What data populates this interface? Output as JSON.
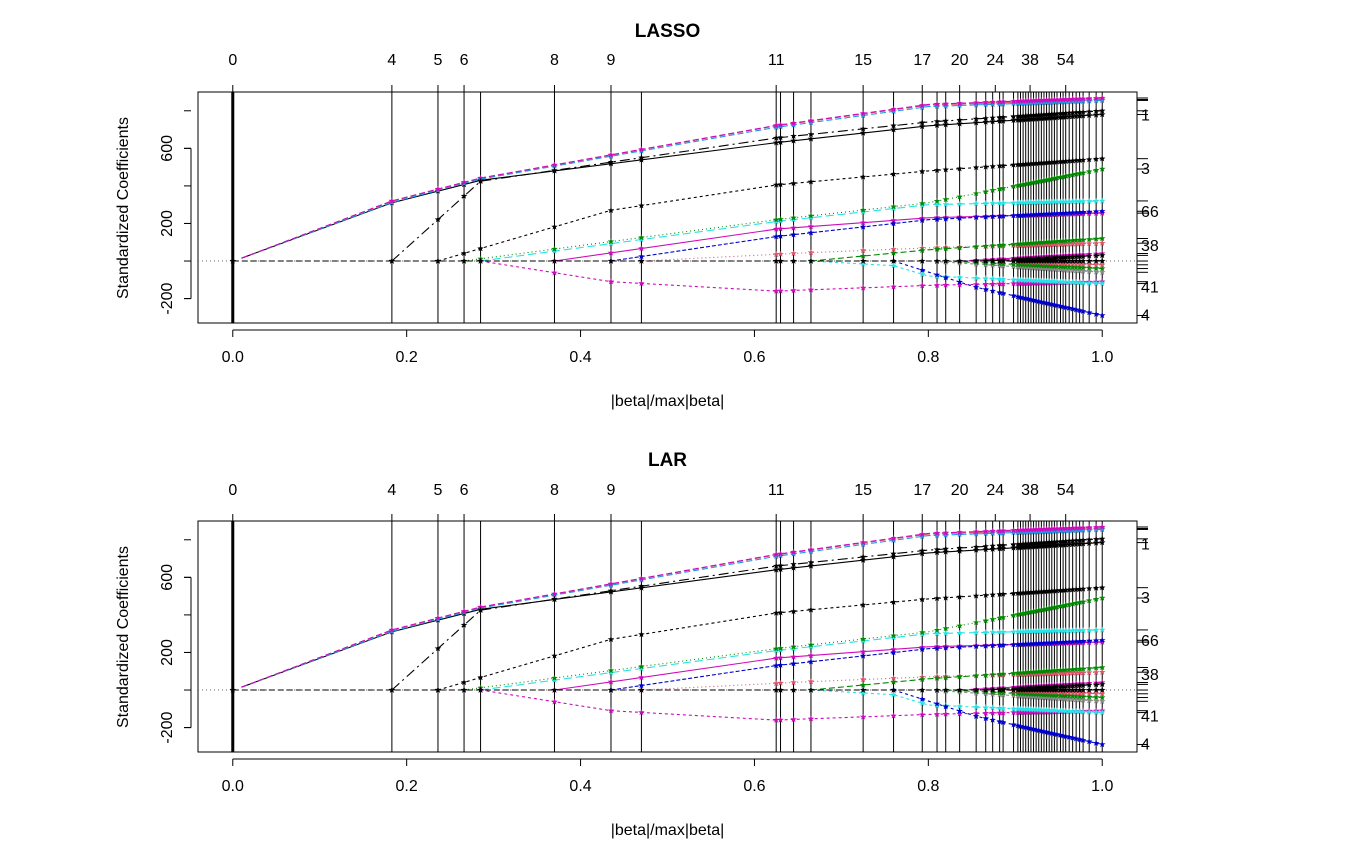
{
  "chart_data": [
    {
      "type": "line",
      "title": "LASSO",
      "xlabel": "|beta|/max|beta|",
      "ylabel": "Standardized Coefficients",
      "xlim": [
        0,
        1
      ],
      "ylim": [
        -330,
        900
      ],
      "x_ticks": [
        "0.0",
        "0.2",
        "0.4",
        "0.6",
        "0.8",
        "1.0"
      ],
      "x_tick_values": [
        0,
        0.2,
        0.4,
        0.6,
        0.8,
        1.0
      ],
      "y_ticks": [
        "-200",
        "200",
        "600"
      ],
      "y_tick_values": [
        -200,
        200,
        600
      ],
      "top_axis_labels": [
        "0",
        "4",
        "5",
        "6",
        "8",
        "9",
        "11",
        "15",
        "17",
        "20",
        "24",
        "38",
        "54"
      ],
      "top_axis_positions": [
        0.0,
        0.183,
        0.236,
        0.266,
        0.37,
        0.435,
        0.625,
        0.725,
        0.793,
        0.836,
        0.877,
        0.917,
        0.958
      ],
      "step_positions": [
        0.0,
        0.183,
        0.236,
        0.266,
        0.285,
        0.37,
        0.435,
        0.47,
        0.625,
        0.63,
        0.645,
        0.665,
        0.725,
        0.76,
        0.793,
        0.81,
        0.82,
        0.836,
        0.855,
        0.866,
        0.874,
        0.882,
        0.886,
        0.898,
        0.903,
        0.906,
        0.909,
        0.912,
        0.915,
        0.918,
        0.921,
        0.924,
        0.927,
        0.93,
        0.933,
        0.936,
        0.939,
        0.942,
        0.945,
        0.948,
        0.952,
        0.955,
        0.958,
        0.962,
        0.966,
        0.97,
        0.974,
        0.978,
        0.985,
        0.993,
        1.0
      ],
      "right_axis_labels": [
        "1",
        "3",
        "66",
        "38",
        "41",
        "4"
      ],
      "right_axis_values": [
        775,
        490,
        260,
        80,
        -140,
        -290
      ],
      "series": [
        {
          "color": "#000000",
          "dash": "",
          "x": [
            0.01,
            0.183,
            0.285,
            0.625,
            0.8,
            1.0
          ],
          "values": [
            15,
            310,
            430,
            630,
            720,
            780
          ]
        },
        {
          "color": "#DF536B",
          "dash": "6,3",
          "x": [
            0.01,
            0.183,
            0.285,
            0.625,
            0.8,
            1.0
          ],
          "values": [
            15,
            318,
            440,
            720,
            830,
            860
          ]
        },
        {
          "color": "#2297E6",
          "dash": "6,3",
          "x": [
            0.01,
            0.183,
            0.285,
            0.625,
            0.8,
            1.0
          ],
          "values": [
            15,
            312,
            436,
            712,
            822,
            855
          ]
        },
        {
          "color": "#CD0BBC",
          "dash": "6,3",
          "x": [
            0.01,
            0.183,
            0.285,
            0.625,
            0.8,
            1.0
          ],
          "values": [
            15,
            320,
            442,
            722,
            834,
            868
          ]
        },
        {
          "color": "#000000",
          "dash": "10,4,2,4",
          "x": [
            0.183,
            0.285,
            0.625,
            0.8,
            1.0
          ],
          "values": [
            0,
            425,
            655,
            740,
            800
          ]
        },
        {
          "color": "#000000",
          "dash": "3,3",
          "x": [
            0.236,
            0.435,
            0.625,
            0.8,
            1.0
          ],
          "values": [
            0,
            270,
            405,
            480,
            545
          ]
        },
        {
          "color": "#28E2E5",
          "dash": "8,4",
          "x": [
            0.285,
            0.625,
            0.8,
            1.0
          ],
          "values": [
            0,
            210,
            300,
            320
          ]
        },
        {
          "color": "#008800",
          "dash": "1,3",
          "x": [
            0.266,
            0.625,
            0.8,
            1.0
          ],
          "values": [
            0,
            220,
            310,
            490
          ]
        },
        {
          "color": "#CD0BBC",
          "dash": "",
          "x": [
            0.37,
            0.625,
            0.8,
            1.0
          ],
          "values": [
            0,
            170,
            230,
            255
          ]
        },
        {
          "color": "#0000CC",
          "dash": "4,2",
          "x": [
            0.435,
            0.625,
            0.8,
            1.0
          ],
          "values": [
            0,
            130,
            220,
            265
          ]
        },
        {
          "color": "#CD0BBC",
          "dash": "3,3",
          "x": [
            0.285,
            0.435,
            0.625,
            0.8,
            1.0
          ],
          "values": [
            0,
            -110,
            -160,
            -130,
            -110
          ]
        },
        {
          "color": "#DF536B",
          "dash": "1,3",
          "x": [
            0.47,
            0.665,
            0.8,
            1.0
          ],
          "values": [
            0,
            45,
            70,
            95
          ]
        },
        {
          "color": "#008800",
          "dash": "6,3",
          "x": [
            0.665,
            0.8,
            1.0
          ],
          "values": [
            0,
            60,
            120
          ]
        },
        {
          "color": "#28E2E5",
          "dash": "3,3",
          "x": [
            0.665,
            0.76,
            0.8,
            1.0
          ],
          "values": [
            0,
            -25,
            -80,
            -120
          ]
        },
        {
          "color": "#0000CC",
          "dash": "3,3",
          "x": [
            0.76,
            0.855,
            1.0
          ],
          "values": [
            0,
            -140,
            -290
          ]
        },
        {
          "color": "#888888",
          "dash": "3,3",
          "x": [
            0.8,
            1.0
          ],
          "values": [
            0,
            -60
          ]
        },
        {
          "color": "#008800",
          "dash": "6,3",
          "x": [
            0.82,
            1.0
          ],
          "values": [
            0,
            -40
          ]
        },
        {
          "color": "#CD0BBC",
          "dash": "6,3",
          "x": [
            0.836,
            1.0
          ],
          "values": [
            0,
            40
          ]
        },
        {
          "color": "#000000",
          "dash": "6,3",
          "x": [
            0.866,
            1.0
          ],
          "values": [
            0,
            30
          ]
        },
        {
          "color": "#DF536B",
          "dash": "6,3",
          "x": [
            0.882,
            1.0
          ],
          "values": [
            0,
            -20
          ]
        },
        {
          "color": "#000000",
          "dash": "6,3",
          "x": [
            0.0,
            1.0
          ],
          "values": [
            0,
            0
          ]
        }
      ]
    },
    {
      "type": "line",
      "title": "LAR",
      "xlabel": "|beta|/max|beta|",
      "ylabel": "Standardized Coefficients",
      "xlim": [
        0,
        1
      ],
      "ylim": [
        -330,
        900
      ],
      "x_ticks": [
        "0.0",
        "0.2",
        "0.4",
        "0.6",
        "0.8",
        "1.0"
      ],
      "x_tick_values": [
        0,
        0.2,
        0.4,
        0.6,
        0.8,
        1.0
      ],
      "y_ticks": [
        "-200",
        "200",
        "600"
      ],
      "y_tick_values": [
        -200,
        200,
        600
      ],
      "top_axis_labels": [
        "0",
        "4",
        "5",
        "6",
        "8",
        "9",
        "11",
        "15",
        "17",
        "20",
        "24",
        "38",
        "54"
      ],
      "top_axis_positions": [
        0.0,
        0.183,
        0.236,
        0.266,
        0.37,
        0.435,
        0.625,
        0.725,
        0.793,
        0.836,
        0.877,
        0.917,
        0.958
      ],
      "step_positions": [
        0.0,
        0.183,
        0.236,
        0.266,
        0.285,
        0.37,
        0.435,
        0.47,
        0.625,
        0.63,
        0.645,
        0.665,
        0.725,
        0.76,
        0.793,
        0.81,
        0.82,
        0.836,
        0.855,
        0.866,
        0.874,
        0.882,
        0.886,
        0.898,
        0.903,
        0.906,
        0.909,
        0.912,
        0.915,
        0.918,
        0.921,
        0.924,
        0.927,
        0.93,
        0.933,
        0.936,
        0.939,
        0.942,
        0.945,
        0.948,
        0.952,
        0.955,
        0.958,
        0.962,
        0.966,
        0.97,
        0.974,
        0.978,
        0.985,
        0.993,
        1.0
      ],
      "right_axis_labels": [
        "1",
        "3",
        "66",
        "38",
        "41",
        "4"
      ],
      "right_axis_values": [
        775,
        490,
        260,
        80,
        -140,
        -290
      ],
      "series": [
        {
          "color": "#000000",
          "dash": "",
          "x": [
            0.01,
            0.183,
            0.285,
            0.625,
            0.8,
            1.0
          ],
          "values": [
            15,
            310,
            430,
            640,
            730,
            785
          ]
        },
        {
          "color": "#DF536B",
          "dash": "6,3",
          "x": [
            0.01,
            0.183,
            0.285,
            0.625,
            0.8,
            1.0
          ],
          "values": [
            15,
            318,
            440,
            720,
            830,
            860
          ]
        },
        {
          "color": "#2297E6",
          "dash": "6,3",
          "x": [
            0.01,
            0.183,
            0.285,
            0.625,
            0.8,
            1.0
          ],
          "values": [
            15,
            312,
            436,
            712,
            822,
            855
          ]
        },
        {
          "color": "#CD0BBC",
          "dash": "6,3",
          "x": [
            0.01,
            0.183,
            0.285,
            0.625,
            0.8,
            1.0
          ],
          "values": [
            15,
            320,
            442,
            722,
            834,
            868
          ]
        },
        {
          "color": "#000000",
          "dash": "10,4,2,4",
          "x": [
            0.183,
            0.285,
            0.625,
            0.8,
            1.0
          ],
          "values": [
            0,
            425,
            660,
            745,
            805
          ]
        },
        {
          "color": "#000000",
          "dash": "3,3",
          "x": [
            0.236,
            0.435,
            0.625,
            0.8,
            1.0
          ],
          "values": [
            0,
            270,
            410,
            485,
            545
          ]
        },
        {
          "color": "#28E2E5",
          "dash": "8,4",
          "x": [
            0.285,
            0.625,
            0.8,
            1.0
          ],
          "values": [
            0,
            210,
            300,
            320
          ]
        },
        {
          "color": "#008800",
          "dash": "1,3",
          "x": [
            0.266,
            0.625,
            0.8,
            1.0
          ],
          "values": [
            0,
            220,
            310,
            490
          ]
        },
        {
          "color": "#CD0BBC",
          "dash": "",
          "x": [
            0.37,
            0.625,
            0.8,
            1.0
          ],
          "values": [
            0,
            170,
            230,
            255
          ]
        },
        {
          "color": "#0000CC",
          "dash": "4,2",
          "x": [
            0.435,
            0.625,
            0.8,
            1.0
          ],
          "values": [
            0,
            130,
            220,
            265
          ]
        },
        {
          "color": "#CD0BBC",
          "dash": "3,3",
          "x": [
            0.285,
            0.435,
            0.625,
            0.8,
            1.0
          ],
          "values": [
            0,
            -110,
            -160,
            -130,
            -110
          ]
        },
        {
          "color": "#DF536B",
          "dash": "1,3",
          "x": [
            0.47,
            0.665,
            0.8,
            1.0
          ],
          "values": [
            0,
            45,
            70,
            95
          ]
        },
        {
          "color": "#008800",
          "dash": "6,3",
          "x": [
            0.665,
            0.8,
            1.0
          ],
          "values": [
            0,
            60,
            120
          ]
        },
        {
          "color": "#28E2E5",
          "dash": "3,3",
          "x": [
            0.665,
            0.76,
            0.8,
            1.0
          ],
          "values": [
            0,
            -25,
            -80,
            -120
          ]
        },
        {
          "color": "#0000CC",
          "dash": "3,3",
          "x": [
            0.76,
            0.855,
            1.0
          ],
          "values": [
            0,
            -140,
            -290
          ]
        },
        {
          "color": "#888888",
          "dash": "3,3",
          "x": [
            0.8,
            1.0
          ],
          "values": [
            0,
            -60
          ]
        },
        {
          "color": "#008800",
          "dash": "6,3",
          "x": [
            0.82,
            1.0
          ],
          "values": [
            0,
            -40
          ]
        },
        {
          "color": "#CD0BBC",
          "dash": "6,3",
          "x": [
            0.836,
            1.0
          ],
          "values": [
            0,
            40
          ]
        },
        {
          "color": "#000000",
          "dash": "6,3",
          "x": [
            0.866,
            1.0
          ],
          "values": [
            0,
            30
          ]
        },
        {
          "color": "#DF536B",
          "dash": "6,3",
          "x": [
            0.882,
            1.0
          ],
          "values": [
            0,
            -20
          ]
        },
        {
          "color": "#000000",
          "dash": "6,3",
          "x": [
            0.0,
            1.0
          ],
          "values": [
            0,
            0
          ]
        }
      ]
    }
  ]
}
